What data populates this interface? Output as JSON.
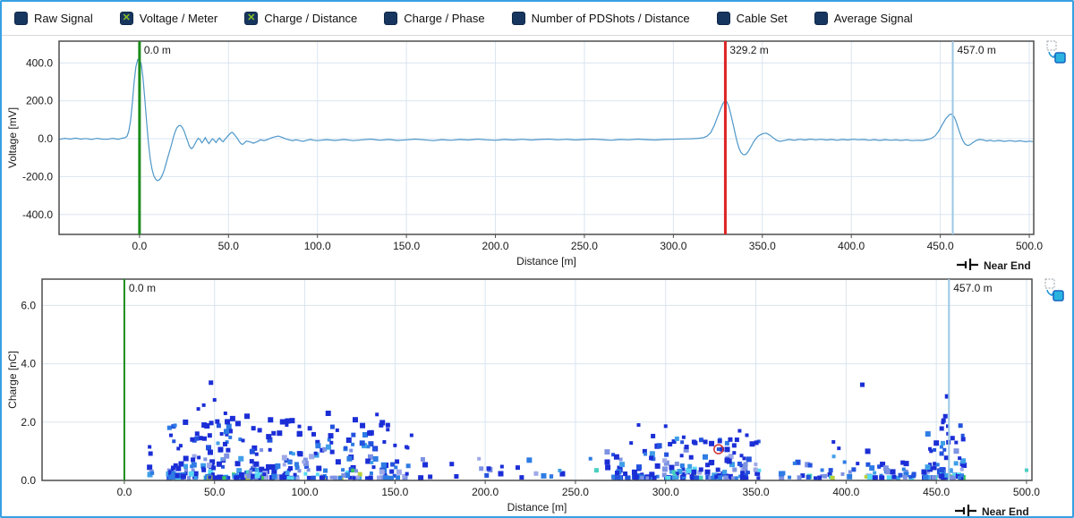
{
  "app": {
    "border_color": "#38a0e2",
    "background": "#ffffff"
  },
  "toolbar": {
    "checkbox_color": "#17365f",
    "check_color": "#8ac224",
    "check_glyph": "✕",
    "items": [
      {
        "label": "Raw Signal",
        "checked": false
      },
      {
        "label": "Voltage / Meter",
        "checked": true
      },
      {
        "label": "Charge / Distance",
        "checked": true
      },
      {
        "label": "Charge / Phase",
        "checked": false
      },
      {
        "label": "Number of PDShots / Distance",
        "checked": false
      },
      {
        "label": "Cable Set",
        "checked": false
      },
      {
        "label": "Average Signal",
        "checked": false
      }
    ]
  },
  "chart_data": [
    {
      "id": "voltage_meter",
      "type": "line",
      "title": "",
      "xlabel": "Distance [m]",
      "ylabel": "Voltage [mV]",
      "corner_label": "Near End",
      "xlim": [
        -45.2,
        502.5
      ],
      "ylim": [
        -505,
        515
      ],
      "xticks": [
        0,
        50,
        100,
        150,
        200,
        250,
        300,
        350,
        400,
        450,
        500
      ],
      "yticks": [
        400,
        200,
        0,
        -200,
        -400
      ],
      "grid": true,
      "grid_color": "#d9e5f0",
      "line_color": "#4e97c9",
      "markers": [
        {
          "x": 0,
          "label": "0.0 m",
          "color": "#1c8c1c",
          "width": 3
        },
        {
          "x": 329.2,
          "label": "329.2 m",
          "color": "#dd2424",
          "width": 3
        },
        {
          "x": 457,
          "label": "457.0 m",
          "color": "#9cc7e4",
          "width": 2
        }
      ],
      "samples": [
        [
          -45,
          -3
        ],
        [
          -42,
          2
        ],
        [
          -39,
          -2
        ],
        [
          -36,
          3
        ],
        [
          -33,
          -2
        ],
        [
          -30,
          1
        ],
        [
          -27,
          -4
        ],
        [
          -24,
          2
        ],
        [
          -21,
          -2
        ],
        [
          -18,
          -3
        ],
        [
          -15,
          2
        ],
        [
          -12,
          -3
        ],
        [
          -10,
          2
        ],
        [
          -8,
          6
        ],
        [
          -7,
          14
        ],
        [
          -6,
          40
        ],
        [
          -5,
          95
        ],
        [
          -4,
          190
        ],
        [
          -3,
          300
        ],
        [
          -2,
          382
        ],
        [
          -1,
          418
        ],
        [
          0,
          420
        ],
        [
          1,
          392
        ],
        [
          2,
          320
        ],
        [
          3,
          210
        ],
        [
          4,
          90
        ],
        [
          5,
          -20
        ],
        [
          6,
          -105
        ],
        [
          7,
          -160
        ],
        [
          8,
          -195
        ],
        [
          9,
          -212
        ],
        [
          10,
          -221
        ],
        [
          11,
          -218
        ],
        [
          12,
          -208
        ],
        [
          13,
          -188
        ],
        [
          14,
          -162
        ],
        [
          15,
          -128
        ],
        [
          16,
          -95
        ],
        [
          17,
          -62
        ],
        [
          18,
          -30
        ],
        [
          19,
          5
        ],
        [
          20,
          35
        ],
        [
          21,
          58
        ],
        [
          22,
          68
        ],
        [
          23,
          70
        ],
        [
          24,
          60
        ],
        [
          25,
          42
        ],
        [
          26,
          15
        ],
        [
          27,
          -12
        ],
        [
          28,
          -38
        ],
        [
          29,
          -52
        ],
        [
          30,
          -48
        ],
        [
          31,
          -30
        ],
        [
          32,
          -12
        ],
        [
          33,
          2
        ],
        [
          34,
          -4
        ],
        [
          35,
          -22
        ],
        [
          36,
          -10
        ],
        [
          37,
          6
        ],
        [
          38,
          -12
        ],
        [
          39,
          -26
        ],
        [
          40,
          -12
        ],
        [
          41,
          0
        ],
        [
          42,
          -8
        ],
        [
          43,
          -20
        ],
        [
          44,
          -6
        ],
        [
          45,
          4
        ],
        [
          46,
          -8
        ],
        [
          47,
          -16
        ],
        [
          48,
          -4
        ],
        [
          49,
          8
        ],
        [
          50,
          18
        ],
        [
          51,
          28
        ],
        [
          52,
          34
        ],
        [
          53,
          26
        ],
        [
          54,
          14
        ],
        [
          55,
          2
        ],
        [
          56,
          -14
        ],
        [
          57,
          -26
        ],
        [
          58,
          -30
        ],
        [
          59,
          -22
        ],
        [
          60,
          -12
        ],
        [
          62,
          -16
        ],
        [
          64,
          -24
        ],
        [
          66,
          -16
        ],
        [
          68,
          -6
        ],
        [
          70,
          -10
        ],
        [
          72,
          -4
        ],
        [
          74,
          4
        ],
        [
          76,
          10
        ],
        [
          78,
          14
        ],
        [
          80,
          8
        ],
        [
          82,
          0
        ],
        [
          84,
          -6
        ],
        [
          86,
          -10
        ],
        [
          88,
          -6
        ],
        [
          90,
          -10
        ],
        [
          92,
          -14
        ],
        [
          94,
          -8
        ],
        [
          96,
          -4
        ],
        [
          98,
          -8
        ],
        [
          100,
          -10
        ],
        [
          105,
          -5
        ],
        [
          110,
          -9
        ],
        [
          115,
          -4
        ],
        [
          120,
          -10
        ],
        [
          125,
          -6
        ],
        [
          130,
          -2
        ],
        [
          135,
          -8
        ],
        [
          140,
          -4
        ],
        [
          145,
          -9
        ],
        [
          150,
          -6
        ],
        [
          155,
          -2
        ],
        [
          160,
          -6
        ],
        [
          165,
          -10
        ],
        [
          170,
          -5
        ],
        [
          175,
          -8
        ],
        [
          180,
          -4
        ],
        [
          185,
          -7
        ],
        [
          190,
          -2
        ],
        [
          195,
          -6
        ],
        [
          200,
          -8
        ],
        [
          205,
          -4
        ],
        [
          210,
          -7
        ],
        [
          215,
          -3
        ],
        [
          220,
          -7
        ],
        [
          225,
          -4
        ],
        [
          230,
          -2
        ],
        [
          235,
          -6
        ],
        [
          240,
          -3
        ],
        [
          245,
          -7
        ],
        [
          250,
          -4
        ],
        [
          255,
          -2
        ],
        [
          260,
          -5
        ],
        [
          265,
          -8
        ],
        [
          270,
          -4
        ],
        [
          275,
          -6
        ],
        [
          280,
          -2
        ],
        [
          285,
          -5
        ],
        [
          290,
          -7
        ],
        [
          295,
          -4
        ],
        [
          300,
          -3
        ],
        [
          305,
          -1
        ],
        [
          310,
          0
        ],
        [
          314,
          2
        ],
        [
          317,
          6
        ],
        [
          319,
          14
        ],
        [
          321,
          32
        ],
        [
          323,
          70
        ],
        [
          325,
          120
        ],
        [
          327,
          168
        ],
        [
          328,
          188
        ],
        [
          329,
          198
        ],
        [
          330,
          196
        ],
        [
          331,
          176
        ],
        [
          332,
          140
        ],
        [
          333,
          100
        ],
        [
          334,
          58
        ],
        [
          335,
          15
        ],
        [
          336,
          -22
        ],
        [
          337,
          -52
        ],
        [
          338,
          -72
        ],
        [
          339,
          -82
        ],
        [
          340,
          -85
        ],
        [
          341,
          -80
        ],
        [
          342,
          -68
        ],
        [
          343,
          -52
        ],
        [
          344,
          -35
        ],
        [
          345,
          -18
        ],
        [
          346,
          -5
        ],
        [
          347,
          8
        ],
        [
          348,
          16
        ],
        [
          350,
          26
        ],
        [
          352,
          30
        ],
        [
          354,
          20
        ],
        [
          356,
          6
        ],
        [
          358,
          -8
        ],
        [
          360,
          -14
        ],
        [
          362,
          -10
        ],
        [
          365,
          -4
        ],
        [
          368,
          -8
        ],
        [
          371,
          -3
        ],
        [
          374,
          -7
        ],
        [
          377,
          -2
        ],
        [
          380,
          -6
        ],
        [
          383,
          -3
        ],
        [
          386,
          -7
        ],
        [
          389,
          -4
        ],
        [
          392,
          -8
        ],
        [
          395,
          -4
        ],
        [
          398,
          -7
        ],
        [
          401,
          -3
        ],
        [
          404,
          -6
        ],
        [
          407,
          -4
        ],
        [
          410,
          -8
        ],
        [
          413,
          -5
        ],
        [
          416,
          -9
        ],
        [
          419,
          -5
        ],
        [
          422,
          -8
        ],
        [
          425,
          -6
        ],
        [
          428,
          -9
        ],
        [
          431,
          -6
        ],
        [
          434,
          -10
        ],
        [
          437,
          -8
        ],
        [
          440,
          -9
        ],
        [
          443,
          -4
        ],
        [
          445,
          2
        ],
        [
          447,
          14
        ],
        [
          449,
          38
        ],
        [
          451,
          72
        ],
        [
          453,
          105
        ],
        [
          455,
          126
        ],
        [
          456,
          130
        ],
        [
          457,
          126
        ],
        [
          458,
          112
        ],
        [
          459,
          88
        ],
        [
          460,
          58
        ],
        [
          461,
          30
        ],
        [
          462,
          4
        ],
        [
          463,
          -16
        ],
        [
          464,
          -28
        ],
        [
          465,
          -34
        ],
        [
          466,
          -35
        ],
        [
          467,
          -30
        ],
        [
          468,
          -22
        ],
        [
          470,
          -10
        ],
        [
          472,
          -4
        ],
        [
          474,
          -6
        ],
        [
          476,
          -12
        ],
        [
          478,
          -8
        ],
        [
          480,
          -13
        ],
        [
          483,
          -9
        ],
        [
          486,
          -14
        ],
        [
          489,
          -10
        ],
        [
          492,
          -14
        ],
        [
          495,
          -11
        ],
        [
          498,
          -16
        ],
        [
          500,
          -13
        ],
        [
          502,
          -15
        ]
      ]
    },
    {
      "id": "charge_distance",
      "type": "scatter",
      "title": "",
      "xlabel": "Distance [m]",
      "ylabel": "Charge [nC]",
      "corner_label": "Near End",
      "xlim": [
        -45.6,
        503
      ],
      "ylim": [
        0,
        6.9
      ],
      "xticks": [
        0,
        50,
        100,
        150,
        200,
        250,
        300,
        350,
        400,
        450,
        500
      ],
      "yticks": [
        0,
        2,
        4,
        6
      ],
      "grid": true,
      "grid_color": "#d9e5f0",
      "markers": [
        {
          "x": 0,
          "label": "0.0 m",
          "color": "#1c8c1c",
          "width": 2
        },
        {
          "x": 457,
          "label": "457.0 m",
          "color": "#9cc7e4",
          "width": 2
        }
      ],
      "palette": [
        {
          "hex": "#1b2ed6",
          "w": 38,
          "ymax": 99
        },
        {
          "hex": "#2353de",
          "w": 12,
          "ymax": 99
        },
        {
          "hex": "#2e7ce4",
          "w": 16,
          "ymax": 99
        },
        {
          "hex": "#3f9fe8",
          "w": 8,
          "ymax": 1.6
        },
        {
          "hex": "#7e92e2",
          "w": 13,
          "ymax": 1.1
        },
        {
          "hex": "#9fa9e8",
          "w": 7,
          "ymax": 0.9
        },
        {
          "hex": "#57d9f2",
          "w": 6,
          "ymax": 0.45
        },
        {
          "hex": "#49cfc0",
          "w": 3,
          "ymax": 0.4
        },
        {
          "hex": "#3bc95e",
          "w": 3,
          "ymax": 0.35
        },
        {
          "hex": "#b9d23c",
          "w": 3,
          "ymax": 0.3
        }
      ],
      "clusters": [
        {
          "x0": 24,
          "x1": 96,
          "count": 210,
          "ymax": 2.1,
          "pow": 3.2
        },
        {
          "x0": 96,
          "x1": 160,
          "count": 115,
          "ymax": 1.9,
          "pow": 3.0
        },
        {
          "x0": 162,
          "x1": 262,
          "count": 24,
          "ymax": 0.75,
          "pow": 2.2
        },
        {
          "x0": 266,
          "x1": 352,
          "count": 175,
          "ymax": 1.45,
          "pow": 3.0
        },
        {
          "x0": 354,
          "x1": 442,
          "count": 62,
          "ymax": 0.85,
          "pow": 2.4
        },
        {
          "x0": 443,
          "x1": 466,
          "count": 72,
          "ymax": 2.0,
          "pow": 2.6
        }
      ],
      "highlights": [
        [
          41,
          2.45
        ],
        [
          44,
          2.58
        ],
        [
          48,
          3.35
        ],
        [
          50,
          2.76
        ],
        [
          56,
          2.3
        ],
        [
          60,
          2.12
        ],
        [
          63,
          1.95
        ],
        [
          68,
          2.2
        ],
        [
          75,
          1.72
        ],
        [
          80,
          1.5
        ],
        [
          86,
          1.62
        ],
        [
          90,
          1.9
        ],
        [
          93,
          2.05
        ],
        [
          97,
          1.85
        ],
        [
          113,
          2.3
        ],
        [
          118,
          1.72
        ],
        [
          128,
          2.08
        ],
        [
          132,
          1.88
        ],
        [
          136,
          1.62
        ],
        [
          140,
          2.26
        ],
        [
          143,
          1.98
        ],
        [
          146,
          1.74
        ],
        [
          150,
          1.2
        ],
        [
          157,
          1.12
        ],
        [
          285,
          1.9
        ],
        [
          293,
          1.52
        ],
        [
          300,
          1.86
        ],
        [
          310,
          1.48
        ],
        [
          322,
          1.32
        ],
        [
          330,
          1.35
        ],
        [
          338,
          1.2
        ],
        [
          341,
          1.7
        ],
        [
          345,
          1.55
        ],
        [
          348,
          1.25
        ],
        [
          393,
          1.32
        ],
        [
          396,
          1.1
        ],
        [
          412,
          1.0
        ],
        [
          453,
          1.78
        ],
        [
          454,
          2.05
        ],
        [
          455,
          2.2
        ],
        [
          456,
          2.88
        ],
        [
          456.5,
          1.6
        ],
        [
          459,
          1.45
        ],
        [
          461,
          1.3
        ]
      ],
      "outliers": [
        [
          409,
          3.28
        ],
        [
          500,
          0.35
        ],
        [
          14,
          1.15
        ],
        [
          14.5,
          0.92
        ],
        [
          14,
          0.45
        ],
        [
          15,
          0.3
        ],
        [
          14.2,
          0.2
        ],
        [
          15.5,
          0.25
        ]
      ],
      "selected_point": {
        "x": 329.3,
        "y": 1.07,
        "ring_color": "#d03030"
      }
    }
  ],
  "icons": {
    "copy_chart": "copy-chart-to-clipboard-icon",
    "near_end": "near-end-terminator-icon"
  }
}
